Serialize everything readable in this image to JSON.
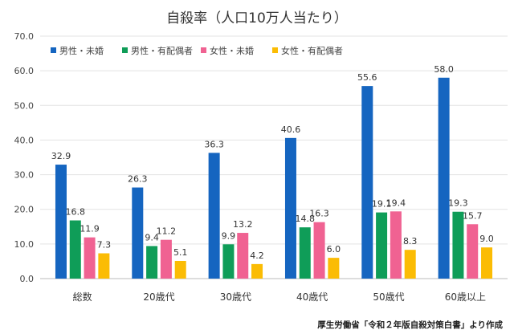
{
  "chart_data": {
    "type": "bar",
    "title": "自殺率（人口10万人当たり）",
    "categories": [
      "総数",
      "20歳代",
      "30歳代",
      "40歳代",
      "50歳代",
      "60歳以上"
    ],
    "series": [
      {
        "name": "男性・未婚",
        "color": "#1565c0",
        "values": [
          32.9,
          26.3,
          36.3,
          40.6,
          55.6,
          58.0
        ]
      },
      {
        "name": "男性・有配偶者",
        "color": "#0f9d58",
        "values": [
          16.8,
          9.4,
          9.9,
          14.8,
          19.1,
          19.3
        ]
      },
      {
        "name": "女性・未婚",
        "color": "#f06292",
        "values": [
          11.9,
          11.2,
          13.2,
          16.3,
          19.4,
          15.7
        ]
      },
      {
        "name": "女性・有配偶者",
        "color": "#fbbc04",
        "values": [
          7.3,
          5.1,
          4.2,
          6.0,
          8.3,
          9.0
        ]
      }
    ],
    "yticks": [
      "0.0",
      "10.0",
      "20.0",
      "30.0",
      "40.0",
      "50.0",
      "60.0",
      "70.0"
    ],
    "ylim": [
      0,
      70
    ],
    "grid": true,
    "legend": "top",
    "xlabel": "",
    "ylabel": ""
  },
  "source": "厚生労働省「令和２年版自殺対策白書」より作成"
}
